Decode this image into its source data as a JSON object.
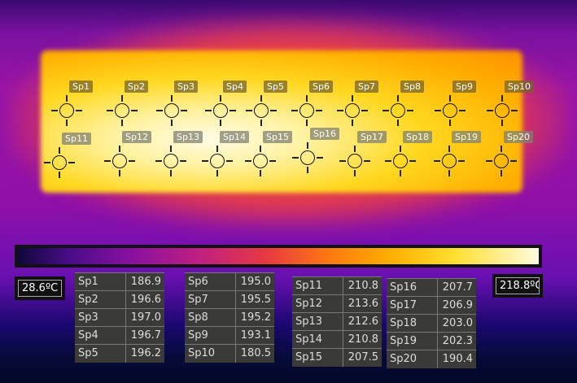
{
  "spots": [
    {
      "label": "Sp1",
      "value": "186.9"
    },
    {
      "label": "Sp2",
      "value": "196.6"
    },
    {
      "label": "Sp3",
      "value": "197.0"
    },
    {
      "label": "Sp4",
      "value": "196.7"
    },
    {
      "label": "Sp5",
      "value": "196.2"
    },
    {
      "label": "Sp6",
      "value": "195.0"
    },
    {
      "label": "Sp7",
      "value": "195.5"
    },
    {
      "label": "Sp8",
      "value": "195.2"
    },
    {
      "label": "Sp9",
      "value": "193.1"
    },
    {
      "label": "Sp10",
      "value": "180.5"
    },
    {
      "label": "Sp11",
      "value": "210.8"
    },
    {
      "label": "Sp12",
      "value": "213.6"
    },
    {
      "label": "Sp13",
      "value": "212.6"
    },
    {
      "label": "Sp14",
      "value": "210.8"
    },
    {
      "label": "Sp15",
      "value": "207.5"
    },
    {
      "label": "Sp16",
      "value": "207.7"
    },
    {
      "label": "Sp17",
      "value": "206.9"
    },
    {
      "label": "Sp18",
      "value": "203.0"
    },
    {
      "label": "Sp19",
      "value": "202.3"
    },
    {
      "label": "Sp20",
      "value": "190.4"
    }
  ],
  "scale": {
    "min": "28.6ºC",
    "max": "218.8ºC"
  }
}
